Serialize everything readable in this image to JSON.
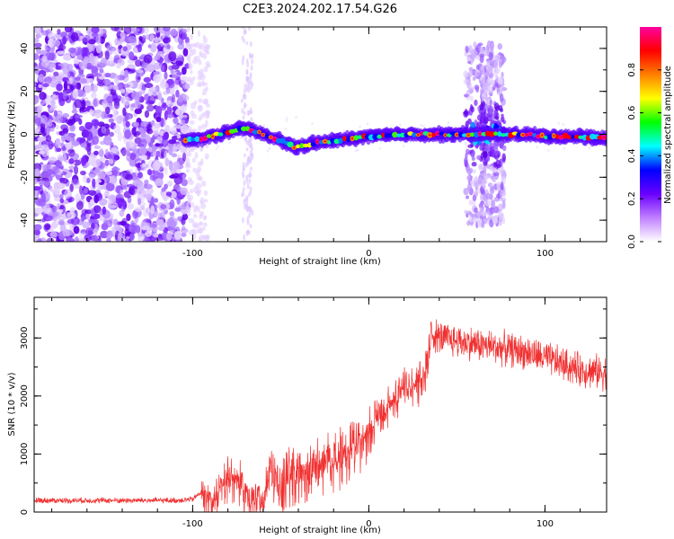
{
  "figure": {
    "title": "C2E3.2024.202.17.54.G26"
  },
  "chart_data": [
    {
      "type": "heatmap",
      "xlabel": "Height of straight line (km)",
      "ylabel": "Frequency (Hz)",
      "xlim": [
        -190,
        135
      ],
      "ylim": [
        -50,
        50
      ],
      "x_ticks": [
        -100,
        0,
        100
      ],
      "y_ticks": [
        -40,
        -20,
        0,
        20,
        40
      ],
      "colorbar": {
        "label": "Normalized spectral amplitude",
        "range": [
          0.0,
          1.0
        ],
        "ticks": [
          0.0,
          0.2,
          0.4,
          0.6,
          0.8
        ],
        "colors": [
          "#ffffff",
          "#c080ff",
          "#6a00ff",
          "#0000ff",
          "#00ffff",
          "#00ff00",
          "#ffff00",
          "#ff8000",
          "#ff0000",
          "#ff00a0"
        ]
      },
      "signal_trace": {
        "x": [
          -105,
          -95,
          -85,
          -75,
          -70,
          -60,
          -50,
          -42,
          -30,
          -20,
          -10,
          0,
          10,
          20,
          30,
          40,
          50,
          60,
          70,
          80,
          90,
          100,
          110,
          120,
          135
        ],
        "frequency": [
          -3,
          -2,
          0,
          2,
          3,
          0,
          -3,
          -6,
          -4,
          -3,
          -2,
          -1,
          -0.5,
          0,
          0,
          0,
          0,
          0,
          0,
          0,
          0,
          -1,
          -1,
          -1,
          -2
        ]
      },
      "bursts": [
        {
          "x_center": 60,
          "half_width": 5
        },
        {
          "x_center": 67,
          "half_width": 3
        },
        {
          "x_center": 73,
          "half_width": 4
        }
      ]
    },
    {
      "type": "line",
      "xlabel": "Height of straight line (km)",
      "ylabel": "SNR (10 * v/v)",
      "xlim": [
        -190,
        135
      ],
      "ylim": [
        0,
        3700
      ],
      "x_ticks": [
        -100,
        0,
        100
      ],
      "y_ticks": [
        0,
        1000,
        2000,
        3000
      ],
      "line_color": "#f03030",
      "envelope": {
        "x": [
          -190,
          -150,
          -110,
          -100,
          -95,
          -90,
          -85,
          -80,
          -75,
          -70,
          -65,
          -60,
          -55,
          -50,
          -40,
          -30,
          -20,
          -10,
          0,
          10,
          20,
          30,
          33,
          35,
          40,
          50,
          60,
          70,
          80,
          90,
          100,
          110,
          120,
          135
        ],
        "snr": [
          200,
          200,
          200,
          220,
          350,
          250,
          400,
          650,
          700,
          350,
          280,
          250,
          900,
          650,
          850,
          900,
          1000,
          1200,
          1500,
          1900,
          2200,
          2400,
          2600,
          3100,
          3000,
          2950,
          2900,
          2850,
          2800,
          2750,
          2650,
          2550,
          2450,
          2400
        ]
      },
      "noise_amplitude": [
        {
          "from": -190,
          "to": -95,
          "amp": 60
        },
        {
          "from": -95,
          "to": -55,
          "amp": 350
        },
        {
          "from": -55,
          "to": 0,
          "amp": 450
        },
        {
          "from": 0,
          "to": 35,
          "amp": 350
        },
        {
          "from": 35,
          "to": 135,
          "amp": 350
        }
      ]
    }
  ]
}
